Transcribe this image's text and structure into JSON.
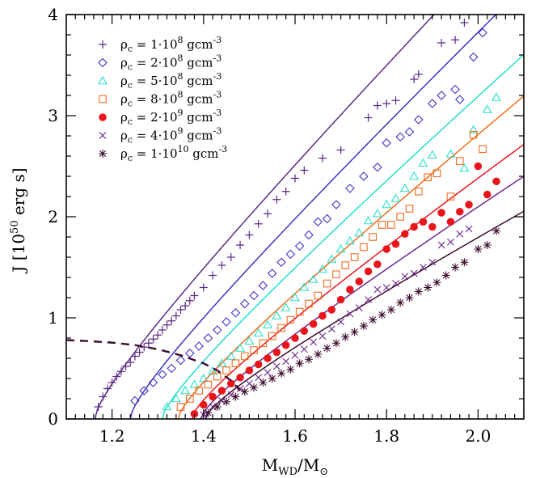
{
  "chart_data": {
    "type": "scatter",
    "title": "",
    "xlabel": "M",
    "xlabel_sub": "WD",
    "xlabel_suffix": "/M",
    "xlabel_suffix_sub": "⊙",
    "ylabel_prefix": "J [10",
    "ylabel_sup": "50",
    "ylabel_suffix": " erg s]",
    "xlim": [
      1.1,
      2.1
    ],
    "ylim": [
      0,
      4.0
    ],
    "x_major_ticks": [
      1.2,
      1.4,
      1.6,
      1.8,
      2.0
    ],
    "x_tick_labels": [
      "1.2",
      "1.4",
      "1.6",
      "1.8",
      "2.0"
    ],
    "y_major_ticks": [
      0,
      1,
      2,
      3,
      4
    ],
    "y_tick_labels": [
      "0",
      "1",
      "2",
      "3",
      "4"
    ],
    "legend_position": "top-left",
    "series": [
      {
        "name": "ρc = 1·10^8 gcm^-3",
        "label_rho": "ρ",
        "label_sub": "c",
        "label_mid": " = 1·10",
        "label_exp": "8",
        "label_unit": " gcm",
        "label_unit_exp": "-3",
        "marker": "plus",
        "color": "#5b2a86",
        "fit": {
          "x0": 1.163,
          "a": 0.22,
          "p": 0.5,
          "b": 4.25
        }
      },
      {
        "name": "ρc = 2·10^8 gcm^-3",
        "label_rho": "ρ",
        "label_sub": "c",
        "label_mid": " = 2·10",
        "label_exp": "8",
        "label_unit": " gcm",
        "label_unit_exp": "-3",
        "marker": "diamond",
        "color": "#3b34c4",
        "fit": {
          "x0": 1.24,
          "a": 0.2,
          "p": 0.5,
          "b": 4.0
        }
      },
      {
        "name": "ρc = 5·10^8 gcm^-3",
        "label_rho": "ρ",
        "label_sub": "c",
        "label_mid": " = 5·10",
        "label_exp": "8",
        "label_unit": " gcm",
        "label_unit_exp": "-3",
        "marker": "triangle",
        "color": "#22e0c8",
        "fit": {
          "x0": 1.31,
          "a": 0.18,
          "p": 0.5,
          "b": 3.65
        }
      },
      {
        "name": "ρc = 8·10^8 gcm^-3",
        "label_rho": "ρ",
        "label_sub": "c",
        "label_mid": " = 8·10",
        "label_exp": "8",
        "label_unit": " gcm",
        "label_unit_exp": "-3",
        "marker": "square",
        "color": "#f26b1d",
        "fit": {
          "x0": 1.345,
          "a": 0.17,
          "p": 0.5,
          "b": 3.35
        }
      },
      {
        "name": "ρc = 2·10^9 gcm^-3",
        "label_rho": "ρ",
        "label_sub": "c",
        "label_mid": " = 2·10",
        "label_exp": "9",
        "label_unit": " gcm",
        "label_unit_exp": "-3",
        "marker": "circle",
        "color": "#e8161b",
        "fit": {
          "x0": 1.375,
          "a": 0.16,
          "p": 0.5,
          "b": 2.9
        }
      },
      {
        "name": "ρc = 4·10^9 gcm^-3",
        "label_rho": "ρ",
        "label_sub": "c",
        "label_mid": " = 4·10",
        "label_exp": "9",
        "label_unit": " gcm",
        "label_unit_exp": "-3",
        "marker": "cross",
        "color": "#6a2a8e",
        "fit": {
          "x0": 1.395,
          "a": 0.15,
          "p": 0.5,
          "b": 2.6
        }
      },
      {
        "name": "ρc = 1·10^10 gcm^-3",
        "label_rho": "ρ",
        "label_sub": "c",
        "label_mid": " = 1·10",
        "label_exp": "10",
        "label_unit": " gcm",
        "label_unit_exp": "-3",
        "marker": "asterisk",
        "color": "#3d0d2e",
        "fit": {
          "x0": 1.405,
          "a": 0.14,
          "p": 0.5,
          "b": 2.2
        }
      }
    ],
    "series_points": [
      [
        [
          1.17,
          0.12
        ],
        [
          1.18,
          0.22
        ],
        [
          1.19,
          0.3
        ],
        [
          1.2,
          0.36
        ],
        [
          1.21,
          0.42
        ],
        [
          1.22,
          0.47
        ],
        [
          1.23,
          0.52
        ],
        [
          1.24,
          0.56
        ],
        [
          1.25,
          0.62
        ],
        [
          1.26,
          0.66
        ],
        [
          1.27,
          0.71
        ],
        [
          1.28,
          0.75
        ],
        [
          1.29,
          0.79
        ],
        [
          1.3,
          0.83
        ],
        [
          1.31,
          0.88
        ],
        [
          1.32,
          0.93
        ],
        [
          1.33,
          0.97
        ],
        [
          1.34,
          1.02
        ],
        [
          1.35,
          1.08
        ],
        [
          1.36,
          1.12
        ],
        [
          1.37,
          1.17
        ],
        [
          1.38,
          1.22
        ],
        [
          1.4,
          1.3
        ],
        [
          1.42,
          1.42
        ],
        [
          1.44,
          1.52
        ],
        [
          1.46,
          1.6
        ],
        [
          1.48,
          1.72
        ],
        [
          1.5,
          1.82
        ],
        [
          1.52,
          1.93
        ],
        [
          1.54,
          2.03
        ],
        [
          1.56,
          2.17
        ],
        [
          1.58,
          2.25
        ],
        [
          1.6,
          2.38
        ],
        [
          1.62,
          2.46
        ],
        [
          1.66,
          2.58
        ],
        [
          1.7,
          2.66
        ],
        [
          1.76,
          2.98
        ],
        [
          1.78,
          3.1
        ],
        [
          1.8,
          3.12
        ],
        [
          1.82,
          3.15
        ],
        [
          1.86,
          3.36
        ],
        [
          1.87,
          3.41
        ],
        [
          1.92,
          3.72
        ],
        [
          1.95,
          3.75
        ],
        [
          1.97,
          3.92
        ]
      ],
      [
        [
          1.25,
          0.18
        ],
        [
          1.27,
          0.28
        ],
        [
          1.29,
          0.36
        ],
        [
          1.31,
          0.44
        ],
        [
          1.33,
          0.5
        ],
        [
          1.35,
          0.58
        ],
        [
          1.37,
          0.65
        ],
        [
          1.39,
          0.72
        ],
        [
          1.41,
          0.8
        ],
        [
          1.43,
          0.88
        ],
        [
          1.45,
          0.96
        ],
        [
          1.47,
          1.05
        ],
        [
          1.49,
          1.14
        ],
        [
          1.51,
          1.22
        ],
        [
          1.53,
          1.32
        ],
        [
          1.55,
          1.44
        ],
        [
          1.57,
          1.55
        ],
        [
          1.59,
          1.63
        ],
        [
          1.61,
          1.71
        ],
        [
          1.63,
          1.82
        ],
        [
          1.65,
          1.95
        ],
        [
          1.67,
          1.98
        ],
        [
          1.69,
          2.12
        ],
        [
          1.72,
          2.28
        ],
        [
          1.75,
          2.4
        ],
        [
          1.78,
          2.49
        ],
        [
          1.8,
          2.73
        ],
        [
          1.83,
          2.79
        ],
        [
          1.85,
          2.84
        ],
        [
          1.87,
          2.96
        ],
        [
          1.9,
          3.12
        ],
        [
          1.92,
          3.2
        ],
        [
          1.95,
          3.26
        ],
        [
          1.96,
          3.16
        ],
        [
          1.99,
          3.58
        ],
        [
          2.01,
          3.82
        ]
      ],
      [
        [
          1.32,
          0.12
        ],
        [
          1.34,
          0.2
        ],
        [
          1.36,
          0.28
        ],
        [
          1.38,
          0.34
        ],
        [
          1.4,
          0.4
        ],
        [
          1.42,
          0.47
        ],
        [
          1.44,
          0.55
        ],
        [
          1.46,
          0.62
        ],
        [
          1.48,
          0.7
        ],
        [
          1.5,
          0.77
        ],
        [
          1.52,
          0.85
        ],
        [
          1.54,
          0.93
        ],
        [
          1.56,
          1.02
        ],
        [
          1.58,
          1.1
        ],
        [
          1.6,
          1.2
        ],
        [
          1.62,
          1.3
        ],
        [
          1.64,
          1.38
        ],
        [
          1.66,
          1.48
        ],
        [
          1.68,
          1.58
        ],
        [
          1.7,
          1.68
        ],
        [
          1.72,
          1.76
        ],
        [
          1.74,
          1.84
        ],
        [
          1.76,
          1.96
        ],
        [
          1.78,
          2.03
        ],
        [
          1.8,
          2.12
        ],
        [
          1.82,
          2.18
        ],
        [
          1.84,
          2.28
        ],
        [
          1.86,
          2.4
        ],
        [
          1.88,
          2.53
        ],
        [
          1.9,
          2.61
        ],
        [
          1.94,
          2.62
        ],
        [
          1.97,
          2.48
        ],
        [
          1.99,
          2.86
        ],
        [
          2.02,
          3.06
        ],
        [
          2.04,
          3.18
        ]
      ],
      [
        [
          1.35,
          0.12
        ],
        [
          1.37,
          0.2
        ],
        [
          1.39,
          0.28
        ],
        [
          1.41,
          0.34
        ],
        [
          1.43,
          0.42
        ],
        [
          1.45,
          0.48
        ],
        [
          1.47,
          0.55
        ],
        [
          1.49,
          0.62
        ],
        [
          1.51,
          0.68
        ],
        [
          1.53,
          0.75
        ],
        [
          1.55,
          0.82
        ],
        [
          1.57,
          0.9
        ],
        [
          1.59,
          0.98
        ],
        [
          1.61,
          1.06
        ],
        [
          1.63,
          1.14
        ],
        [
          1.65,
          1.22
        ],
        [
          1.67,
          1.34
        ],
        [
          1.69,
          1.43
        ],
        [
          1.71,
          1.52
        ],
        [
          1.73,
          1.6
        ],
        [
          1.75,
          1.7
        ],
        [
          1.77,
          1.8
        ],
        [
          1.79,
          1.92
        ],
        [
          1.81,
          1.92
        ],
        [
          1.83,
          2.0
        ],
        [
          1.85,
          2.08
        ],
        [
          1.87,
          2.25
        ],
        [
          1.89,
          2.39
        ],
        [
          1.91,
          2.43
        ],
        [
          1.94,
          2.2
        ],
        [
          1.96,
          2.55
        ],
        [
          1.99,
          2.81
        ],
        [
          2.01,
          2.67
        ]
      ],
      [
        [
          1.38,
          0.05
        ],
        [
          1.4,
          0.14
        ],
        [
          1.42,
          0.22
        ],
        [
          1.44,
          0.28
        ],
        [
          1.46,
          0.35
        ],
        [
          1.48,
          0.41
        ],
        [
          1.5,
          0.48
        ],
        [
          1.52,
          0.54
        ],
        [
          1.54,
          0.6
        ],
        [
          1.56,
          0.66
        ],
        [
          1.58,
          0.73
        ],
        [
          1.6,
          0.8
        ],
        [
          1.62,
          0.87
        ],
        [
          1.64,
          0.94
        ],
        [
          1.66,
          1.02
        ],
        [
          1.68,
          1.08
        ],
        [
          1.7,
          1.18
        ],
        [
          1.72,
          1.28
        ],
        [
          1.74,
          1.36
        ],
        [
          1.76,
          1.46
        ],
        [
          1.78,
          1.53
        ],
        [
          1.8,
          1.68
        ],
        [
          1.82,
          1.73
        ],
        [
          1.84,
          1.83
        ],
        [
          1.86,
          1.9
        ],
        [
          1.88,
          1.95
        ],
        [
          1.9,
          1.9
        ],
        [
          1.92,
          2.04
        ],
        [
          1.94,
          1.95
        ],
        [
          1.96,
          2.05
        ],
        [
          1.98,
          2.12
        ],
        [
          2.0,
          2.5
        ],
        [
          2.02,
          2.22
        ],
        [
          2.04,
          2.35
        ]
      ],
      [
        [
          1.4,
          0.04
        ],
        [
          1.42,
          0.12
        ],
        [
          1.44,
          0.18
        ],
        [
          1.46,
          0.24
        ],
        [
          1.48,
          0.3
        ],
        [
          1.5,
          0.35
        ],
        [
          1.52,
          0.41
        ],
        [
          1.54,
          0.46
        ],
        [
          1.56,
          0.52
        ],
        [
          1.58,
          0.57
        ],
        [
          1.6,
          0.63
        ],
        [
          1.62,
          0.69
        ],
        [
          1.64,
          0.76
        ],
        [
          1.66,
          0.82
        ],
        [
          1.68,
          0.89
        ],
        [
          1.7,
          0.96
        ],
        [
          1.72,
          1.04
        ],
        [
          1.74,
          1.1
        ],
        [
          1.76,
          1.18
        ],
        [
          1.78,
          1.28
        ],
        [
          1.8,
          1.3
        ],
        [
          1.82,
          1.34
        ],
        [
          1.84,
          1.41
        ],
        [
          1.86,
          1.44
        ],
        [
          1.88,
          1.5
        ],
        [
          1.9,
          1.55
        ],
        [
          1.92,
          1.72
        ],
        [
          1.94,
          1.75
        ],
        [
          1.96,
          1.83
        ],
        [
          1.98,
          1.88
        ]
      ],
      [
        [
          1.41,
          0.06
        ],
        [
          1.43,
          0.12
        ],
        [
          1.45,
          0.17
        ],
        [
          1.47,
          0.22
        ],
        [
          1.49,
          0.27
        ],
        [
          1.51,
          0.31
        ],
        [
          1.53,
          0.36
        ],
        [
          1.55,
          0.4
        ],
        [
          1.57,
          0.45
        ],
        [
          1.59,
          0.49
        ],
        [
          1.61,
          0.55
        ],
        [
          1.63,
          0.59
        ],
        [
          1.65,
          0.64
        ],
        [
          1.67,
          0.7
        ],
        [
          1.69,
          0.75
        ],
        [
          1.71,
          0.81
        ],
        [
          1.73,
          0.86
        ],
        [
          1.75,
          0.92
        ],
        [
          1.77,
          0.98
        ],
        [
          1.79,
          1.03
        ],
        [
          1.81,
          1.08
        ],
        [
          1.83,
          1.15
        ],
        [
          1.85,
          1.2
        ],
        [
          1.87,
          1.26
        ],
        [
          1.89,
          1.3
        ],
        [
          1.91,
          1.35
        ],
        [
          1.93,
          1.42
        ],
        [
          1.95,
          1.5
        ],
        [
          1.97,
          1.55
        ],
        [
          2.0,
          1.68
        ],
        [
          2.02,
          1.72
        ],
        [
          2.04,
          1.86
        ]
      ]
    ],
    "dashed_curve": {
      "color": "#3d0d2e",
      "points": [
        [
          1.1,
          0.78
        ],
        [
          1.15,
          0.77
        ],
        [
          1.2,
          0.755
        ],
        [
          1.25,
          0.73
        ],
        [
          1.3,
          0.69
        ],
        [
          1.35,
          0.63
        ],
        [
          1.4,
          0.55
        ],
        [
          1.43,
          0.48
        ],
        [
          1.46,
          0.38
        ],
        [
          1.48,
          0.28
        ]
      ]
    }
  }
}
